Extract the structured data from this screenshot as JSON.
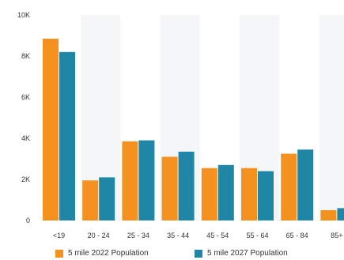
{
  "chart_data": {
    "type": "bar",
    "title": "",
    "xlabel": "",
    "ylabel": "",
    "categories": [
      "<19",
      "20 - 24",
      "25 - 34",
      "35 - 44",
      "45 - 54",
      "55 - 64",
      "65 - 84",
      "85+"
    ],
    "series": [
      {
        "name": "5 mile 2022 Population",
        "color": "#f5911e",
        "values": [
          8850,
          1950,
          3850,
          3100,
          2550,
          2550,
          3250,
          500
        ]
      },
      {
        "name": "5 mile 2027 Population",
        "color": "#1f86a6",
        "values": [
          8200,
          2100,
          3900,
          3350,
          2700,
          2400,
          3450,
          600
        ]
      }
    ],
    "ylim": [
      0,
      10000
    ],
    "yticks": [
      0,
      2000,
      4000,
      6000,
      8000,
      10000
    ],
    "ytick_labels": [
      "0",
      "2K",
      "4K",
      "6K",
      "8K",
      "10K"
    ],
    "grid": false,
    "legend_position": "bottom"
  }
}
